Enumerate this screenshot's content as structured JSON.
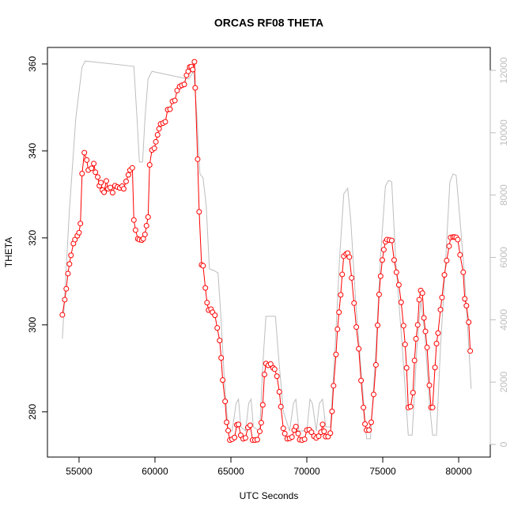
{
  "chart_data": {
    "type": "line",
    "title": "ORCAS RF08 THETA",
    "xlabel": "UTC Seconds",
    "ylabel": "THETA",
    "xlim": [
      52920,
      82080
    ],
    "xticks": [
      55000,
      60000,
      65000,
      70000,
      75000,
      80000
    ],
    "ylim": [
      269.6,
      363.8
    ],
    "yticks": [
      280,
      300,
      320,
      340,
      360
    ],
    "y2lim": [
      -406,
      12736
    ],
    "y2ticks": [
      0,
      2000,
      4000,
      6000,
      8000,
      10000,
      12000
    ],
    "series": [
      {
        "color": "#ff0000",
        "marker": "circle",
        "x": [
          53903,
          54060,
          54160,
          54270,
          54370,
          54470,
          54630,
          54730,
          54890,
          55000,
          55090,
          55200,
          55350,
          55510,
          55610,
          55820,
          55970,
          56080,
          56230,
          56340,
          56440,
          56540,
          56650,
          56800,
          56910,
          57060,
          57210,
          57370,
          57530,
          57680,
          57840,
          57940,
          58100,
          58250,
          58360,
          58510,
          58610,
          58720,
          58870,
          58970,
          59130,
          59230,
          59340,
          59440,
          59550,
          59650,
          59800,
          59960,
          60060,
          60170,
          60270,
          60370,
          60530,
          60680,
          60840,
          60990,
          61150,
          61310,
          61460,
          61620,
          61770,
          61930,
          62080,
          62190,
          62290,
          62390,
          62490,
          62600,
          62650,
          62810,
          62910,
          63070,
          63170,
          63320,
          63430,
          63530,
          63690,
          63790,
          63950,
          64100,
          64260,
          64360,
          64460,
          64620,
          64720,
          64820,
          64930,
          65080,
          65240,
          65390,
          65500,
          65650,
          65810,
          65960,
          66120,
          66270,
          66430,
          66590,
          66740,
          66900,
          67000,
          67100,
          67210,
          67310,
          67460,
          67620,
          67780,
          67880,
          68030,
          68190,
          68290,
          68450,
          68550,
          68710,
          68860,
          69020,
          69170,
          69280,
          69430,
          69530,
          69690,
          69850,
          70000,
          70160,
          70310,
          70470,
          70620,
          70780,
          70930,
          71040,
          71140,
          71240,
          71400,
          71550,
          71660,
          71760,
          71920,
          72020,
          72120,
          72230,
          72330,
          72430,
          72590,
          72690,
          72800,
          72950,
          73110,
          73260,
          73420,
          73570,
          73730,
          73830,
          73930,
          74090,
          74240,
          74400,
          74550,
          74660,
          74760,
          74860,
          74970,
          75070,
          75180,
          75280,
          75440,
          75590,
          75750,
          75900,
          76060,
          76210,
          76370,
          76470,
          76570,
          76680,
          76830,
          76990,
          77090,
          77190,
          77300,
          77400,
          77500,
          77610,
          77710,
          77810,
          77920,
          78070,
          78180,
          78280,
          78440,
          78540,
          78640,
          78800,
          78900,
          79060,
          79210,
          79370,
          79470,
          79630,
          79730,
          79840,
          79940,
          80090,
          80300,
          80400,
          80510,
          80660,
          80760
        ],
        "values": [
          302.3,
          305.8,
          308.3,
          311.8,
          314.0,
          316.0,
          318.7,
          319.6,
          320.5,
          321.2,
          323.3,
          334.8,
          339.6,
          337.9,
          335.6,
          336.0,
          337.1,
          335.1,
          334.0,
          332.0,
          332.7,
          331.0,
          330.5,
          333.1,
          331.3,
          331.6,
          330.4,
          332.0,
          331.7,
          331.5,
          331.9,
          331.3,
          333.0,
          334.5,
          335.6,
          336.1,
          324.1,
          321.8,
          319.8,
          319.6,
          319.5,
          319.8,
          320.8,
          322.8,
          324.8,
          336.8,
          340.2,
          340.6,
          342.1,
          343.7,
          345.1,
          346.2,
          346.4,
          346.7,
          349.5,
          349.6,
          351.4,
          351.6,
          353.9,
          354.8,
          355.1,
          355.3,
          357.4,
          358.3,
          359.3,
          359.4,
          358.7,
          360.5,
          354.5,
          338.1,
          326.0,
          313.8,
          313.6,
          308.5,
          305.1,
          303.4,
          303.6,
          302.9,
          302.2,
          299.3,
          296.4,
          292.4,
          287.3,
          282.4,
          277.6,
          275.7,
          273.5,
          273.7,
          274.1,
          277.0,
          277.1,
          274.6,
          273.8,
          274.0,
          276.4,
          276.9,
          273.5,
          273.5,
          273.6,
          275.5,
          277.5,
          281.6,
          288.6,
          291.1,
          290.7,
          291.0,
          290.1,
          289.8,
          288.2,
          284.6,
          281.2,
          276.2,
          275.0,
          273.8,
          273.9,
          274.2,
          275.8,
          276.6,
          275.0,
          273.6,
          273.5,
          273.7,
          275.8,
          275.9,
          275.3,
          274.4,
          274.0,
          274.4,
          275.3,
          277.1,
          275.5,
          274.3,
          274.3,
          275.1,
          280.1,
          286.0,
          293.2,
          299.0,
          302.9,
          306.9,
          311.6,
          315.8,
          316.3,
          316.5,
          315.6,
          310.8,
          305.0,
          299.5,
          294.5,
          287.2,
          281.0,
          277.2,
          275.8,
          275.8,
          277.6,
          284.0,
          290.8,
          299.9,
          307.0,
          311.2,
          314.9,
          317.3,
          319.1,
          319.6,
          319.5,
          319.4,
          314.9,
          312.1,
          309.2,
          305.2,
          299.8,
          295.5,
          290.1,
          281.0,
          281.2,
          284.4,
          291.8,
          296.8,
          300.0,
          305.8,
          307.9,
          307.3,
          301.6,
          298.5,
          294.8,
          286.1,
          281.0,
          281.0,
          290.2,
          295.7,
          298.1,
          303.5,
          306.3,
          311.5,
          314.8,
          318.1,
          320.1,
          320.2,
          320.2,
          320.1,
          319.6,
          316.1,
          312.1,
          306.0,
          304.4,
          300.6,
          294.0
        ]
      },
      {
        "color": "#bebebe",
        "axis": "y2",
        "x": [
          53903,
          54369,
          54783,
          55197,
          55404,
          58614,
          58821,
          58976,
          59183,
          59338,
          59545,
          59804,
          61719,
          62237,
          62547,
          62754,
          62961,
          63168,
          63376,
          63583,
          63893,
          64152,
          64307,
          64566,
          64825,
          65084,
          65342,
          65498,
          65653,
          65964,
          66171,
          66326,
          66481,
          66895,
          67102,
          67309,
          67930,
          68137,
          68448,
          68862,
          69121,
          69276,
          69483,
          70001,
          70208,
          70363,
          70622,
          70829,
          71036,
          71243,
          71554,
          71864,
          72175,
          72434,
          72692,
          72899,
          73210,
          73624,
          73935,
          74193,
          74556,
          74866,
          75177,
          75384,
          75591,
          75850,
          76212,
          76471,
          76678,
          76937,
          77247,
          77506,
          77765,
          78075,
          78282,
          78541,
          78800,
          79111,
          79421,
          79628,
          79835,
          80094,
          80353,
          80612,
          80819
        ],
        "values": [
          3400,
          7530,
          10450,
          12100,
          12300,
          12130,
          10450,
          9060,
          9060,
          10450,
          11720,
          11970,
          11770,
          11720,
          11970,
          10580,
          8680,
          8550,
          7660,
          5630,
          5580,
          5500,
          4360,
          2080,
          430,
          430,
          1320,
          1450,
          560,
          430,
          1320,
          1450,
          560,
          430,
          2590,
          4110,
          4110,
          2840,
          1070,
          430,
          1320,
          1450,
          430,
          430,
          1450,
          1320,
          430,
          1320,
          1450,
          560,
          560,
          3100,
          6140,
          8040,
          8220,
          7150,
          4620,
          2080,
          180,
          180,
          3100,
          6140,
          8290,
          8470,
          8420,
          5890,
          3600,
          1830,
          300,
          300,
          3100,
          4620,
          3600,
          1320,
          300,
          300,
          3100,
          5630,
          8420,
          8680,
          8630,
          7150,
          5630,
          3600,
          1780
        ]
      }
    ]
  }
}
